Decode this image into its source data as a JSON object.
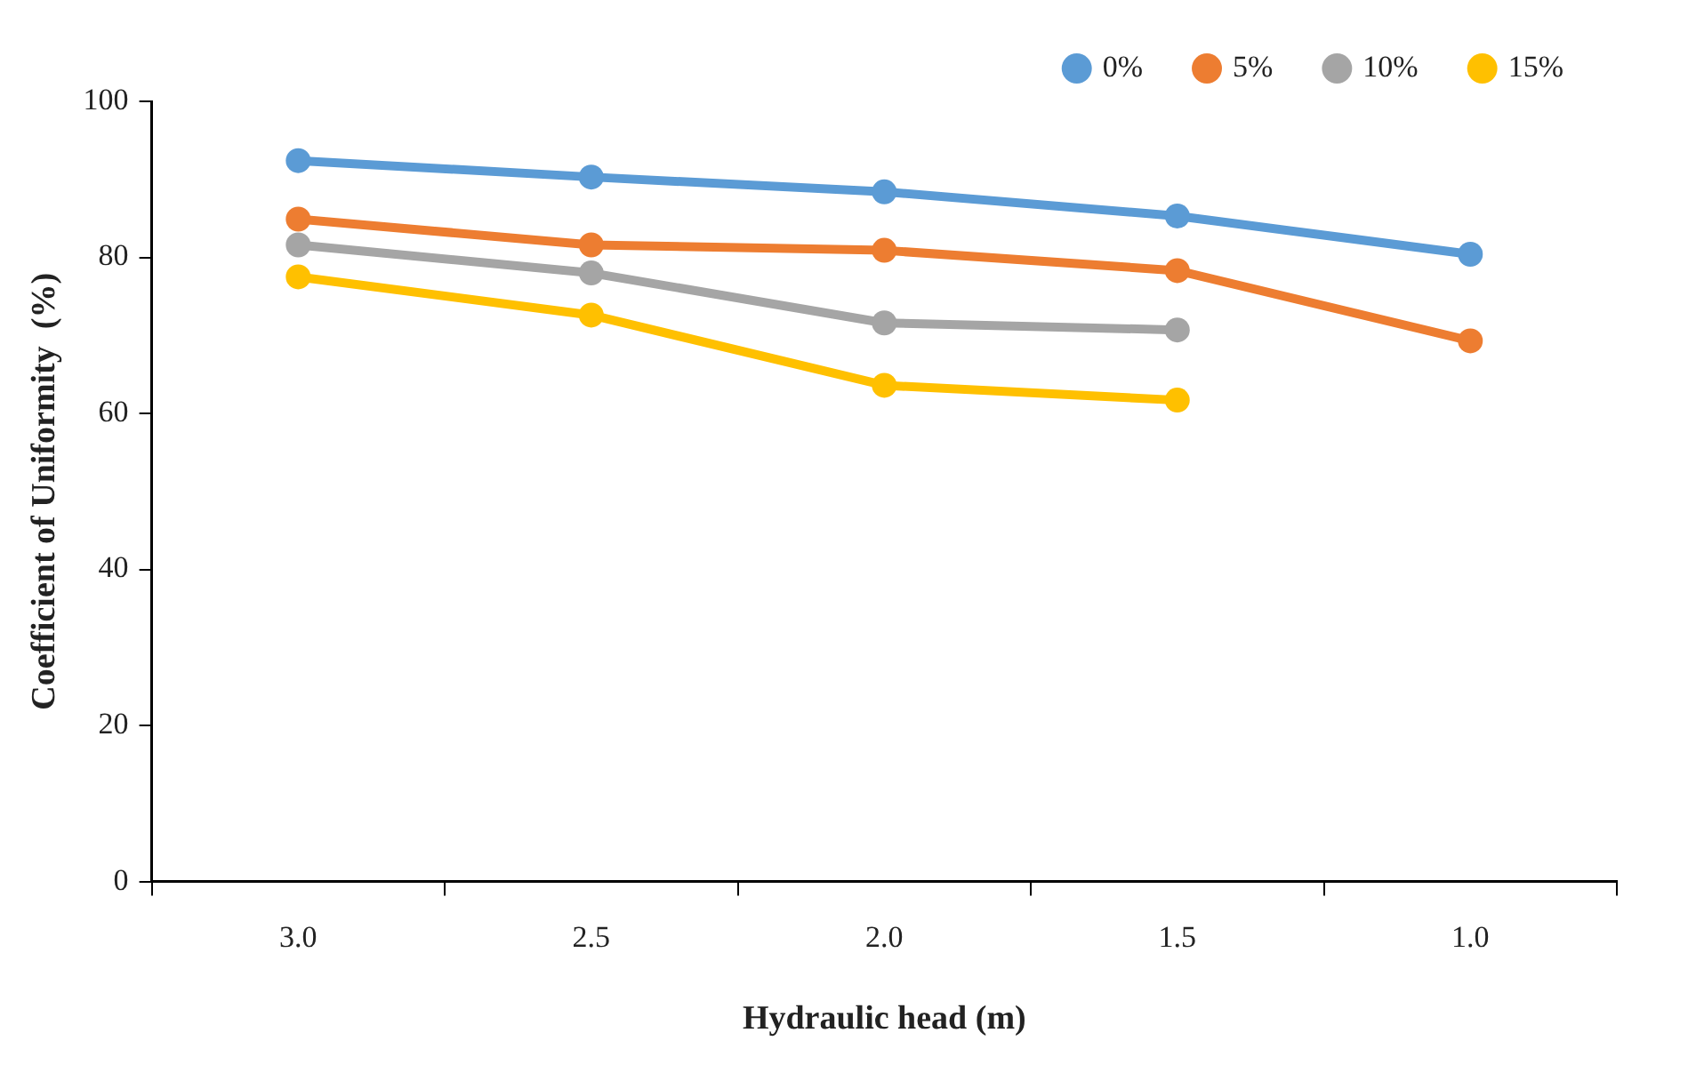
{
  "chart_data": {
    "type": "line",
    "xlabel": "Hydraulic head (m)",
    "ylabel": "Coefficient of Uniformity  (%)",
    "categories": [
      "3.0",
      "2.5",
      "2.0",
      "1.5",
      "1.0"
    ],
    "ylim": [
      0,
      100
    ],
    "yticks": [
      0,
      20,
      40,
      60,
      80,
      100
    ],
    "grid": false,
    "legend": "top right",
    "marker": "circle",
    "line_style": "solid",
    "series": [
      {
        "name": "0%",
        "color": "#5b9bd5",
        "values": [
          92.4,
          90.3,
          88.4,
          85.3,
          80.4
        ]
      },
      {
        "name": "5%",
        "color": "#ed7d31",
        "values": [
          84.9,
          81.6,
          80.9,
          78.3,
          69.3
        ]
      },
      {
        "name": "10%",
        "color": "#a5a5a5",
        "values": [
          81.6,
          78,
          71.6,
          70.7,
          null
        ]
      },
      {
        "name": "15%",
        "color": "#ffc000",
        "values": [
          77.5,
          72.6,
          63.6,
          61.7,
          null
        ]
      }
    ]
  }
}
